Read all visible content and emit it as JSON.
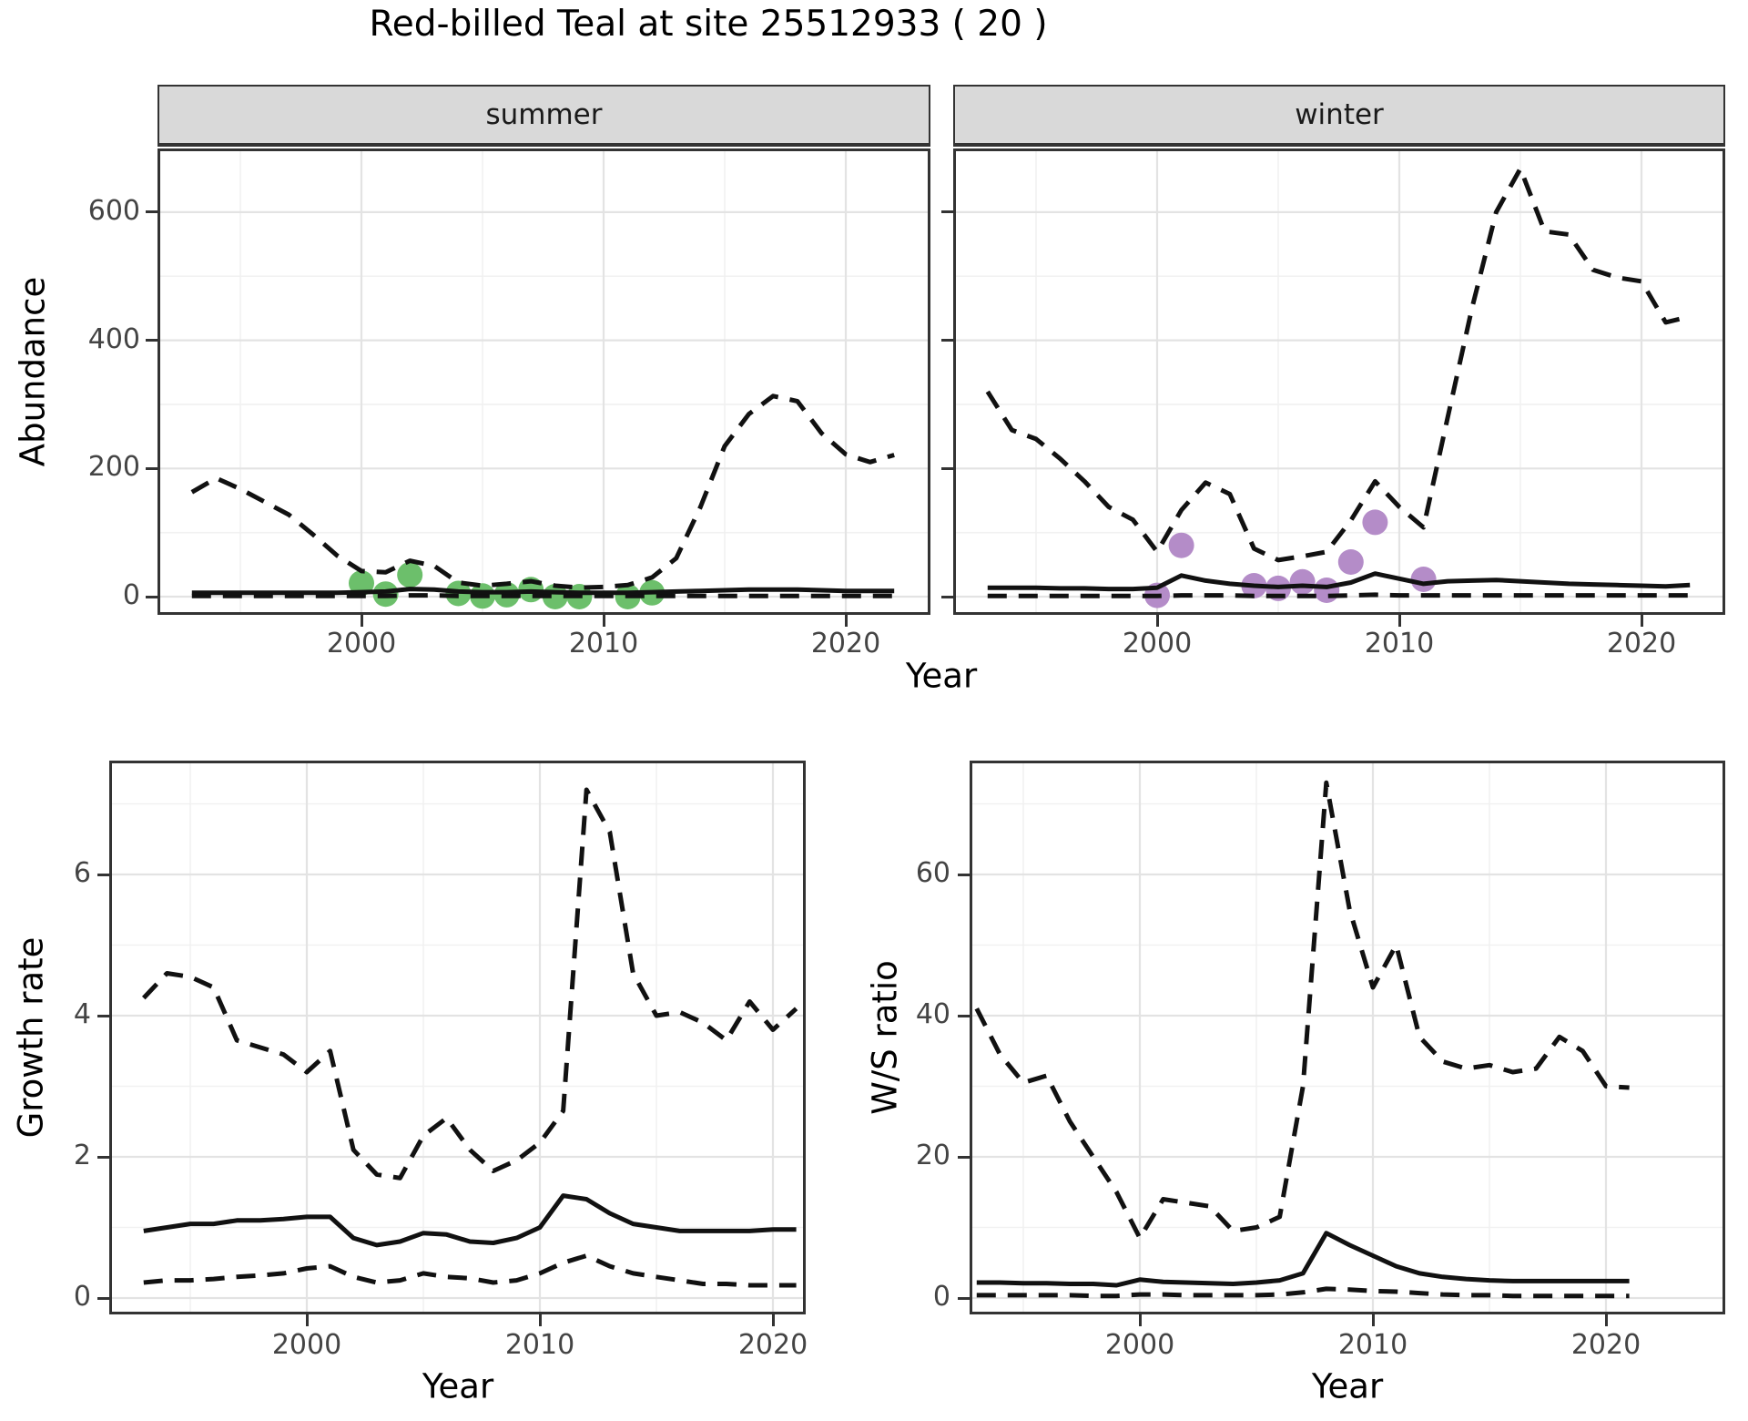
{
  "title": "Red-billed Teal at site 25512933 ( 20 )",
  "colors": {
    "observed_summer": "#6cbf6b",
    "observed_winter": "#b48cc8",
    "line": "#111111",
    "strip_bg": "#d9d9d9",
    "strip_text": "#1a1a1a",
    "grid_major": "#e3e3e3",
    "grid_minor": "#f1f1f1",
    "tick_text": "#444444",
    "panel_border": "#333333"
  },
  "top_figure": {
    "ylabel": "Abundance",
    "xlabel": "Year"
  },
  "chart_data": [
    {
      "id": "abundance-summer",
      "type": "line",
      "facet": "summer",
      "ylabel": "Abundance",
      "xlabel": "Year",
      "x": [
        1993,
        1994,
        1995,
        1996,
        1997,
        1998,
        1999,
        2000,
        2001,
        2002,
        2003,
        2004,
        2005,
        2006,
        2007,
        2008,
        2009,
        2010,
        2011,
        2012,
        2013,
        2014,
        2015,
        2016,
        2017,
        2018,
        2019,
        2020,
        2021,
        2022
      ],
      "series": [
        {
          "name": "upper_95ci",
          "style": "dashed",
          "values": [
            163,
            185,
            168,
            148,
            128,
            97,
            64,
            40,
            38,
            56,
            48,
            22,
            17,
            20,
            24,
            17,
            14,
            15,
            18,
            30,
            60,
            140,
            235,
            285,
            313,
            305,
            255,
            222,
            210,
            221
          ]
        },
        {
          "name": "median",
          "style": "solid",
          "values": [
            6,
            6,
            6,
            6,
            6,
            6,
            6,
            7,
            8,
            12,
            11,
            8,
            7,
            7,
            8,
            7,
            6,
            6,
            6,
            7,
            8,
            9,
            10,
            11,
            11,
            11,
            10,
            9,
            9,
            9
          ]
        },
        {
          "name": "lower_95ci",
          "style": "dashed",
          "values": [
            1,
            1,
            1,
            1,
            1,
            1,
            1,
            1,
            1,
            2,
            2,
            1,
            1,
            1,
            1,
            1,
            1,
            1,
            1,
            1,
            1,
            1,
            1,
            1,
            1,
            1,
            1,
            1,
            1,
            1
          ]
        }
      ],
      "points": {
        "name": "observed_counts_summer",
        "x": [
          2000,
          2001,
          2002,
          2004,
          2005,
          2006,
          2007,
          2008,
          2009,
          2011,
          2012
        ],
        "y": [
          21,
          4,
          34,
          5,
          1,
          3,
          11,
          0,
          0,
          0,
          6
        ]
      },
      "xticks": {
        "values": [
          2000,
          2010,
          2020
        ],
        "labels": [
          "2000",
          "2010",
          "2020"
        ]
      },
      "yticks": {
        "values": [
          0,
          200,
          400,
          600
        ],
        "labels": [
          "0",
          "200",
          "400",
          "600"
        ]
      },
      "x_minor": [
        1995,
        2005,
        2015
      ],
      "y_minor": [
        100,
        300,
        500,
        700
      ],
      "xlim": [
        1991.6,
        2023.5
      ],
      "ylim": [
        -28,
        699
      ],
      "grid": true,
      "legend": "none"
    },
    {
      "id": "abundance-winter",
      "type": "line",
      "facet": "winter",
      "ylabel": "Abundance",
      "xlabel": "Year",
      "x": [
        1993,
        1994,
        1995,
        1996,
        1997,
        1998,
        1999,
        2000,
        2001,
        2002,
        2003,
        2004,
        2005,
        2006,
        2007,
        2008,
        2009,
        2010,
        2011,
        2012,
        2013,
        2014,
        2015,
        2016,
        2017,
        2018,
        2019,
        2020,
        2021,
        2022
      ],
      "series": [
        {
          "name": "upper_95ci",
          "style": "dashed",
          "values": [
            320,
            260,
            246,
            215,
            180,
            140,
            120,
            70,
            135,
            178,
            160,
            75,
            57,
            63,
            70,
            119,
            180,
            140,
            108,
            280,
            450,
            600,
            668,
            570,
            565,
            510,
            498,
            492,
            428,
            437
          ]
        },
        {
          "name": "median",
          "style": "solid",
          "values": [
            14,
            14,
            14,
            13,
            13,
            12,
            12,
            14,
            33,
            25,
            20,
            17,
            15,
            17,
            15,
            22,
            36,
            28,
            20,
            24,
            25,
            26,
            24,
            22,
            20,
            19,
            18,
            17,
            16,
            18
          ]
        },
        {
          "name": "lower_95ci",
          "style": "dashed",
          "values": [
            1,
            1,
            1,
            1,
            1,
            1,
            1,
            1,
            2,
            2,
            2,
            1,
            1,
            1,
            1,
            2,
            3,
            2,
            2,
            2,
            2,
            2,
            2,
            2,
            2,
            2,
            2,
            2,
            2,
            2
          ]
        }
      ],
      "points": {
        "name": "observed_counts_winter",
        "x": [
          2000,
          2001,
          2004,
          2005,
          2006,
          2007,
          2008,
          2009,
          2011
        ],
        "y": [
          2,
          80,
          17,
          13,
          23,
          10,
          54,
          116,
          27
        ]
      },
      "xticks": {
        "values": [
          2000,
          2010,
          2020
        ],
        "labels": [
          "2000",
          "2010",
          "2020"
        ]
      },
      "yticks": {
        "values": [
          0,
          200,
          400,
          600
        ],
        "labels": [
          "0",
          "200",
          "400",
          "600"
        ]
      },
      "x_minor": [
        1995,
        2005,
        2015
      ],
      "y_minor": [
        100,
        300,
        500,
        700
      ],
      "xlim": [
        1991.6,
        2023.5
      ],
      "ylim": [
        -28,
        699
      ],
      "grid": true,
      "legend": "none"
    },
    {
      "id": "growth-rate",
      "type": "line",
      "facet": "",
      "ylabel": "Growth rate",
      "xlabel": "Year",
      "x": [
        1993,
        1994,
        1995,
        1996,
        1997,
        1998,
        1999,
        2000,
        2001,
        2002,
        2003,
        2004,
        2005,
        2006,
        2007,
        2008,
        2009,
        2010,
        2011,
        2012,
        2013,
        2014,
        2015,
        2016,
        2017,
        2018,
        2019,
        2020,
        2021
      ],
      "series": [
        {
          "name": "upper_95ci",
          "style": "dashed",
          "values": [
            4.25,
            4.6,
            4.55,
            4.4,
            3.65,
            3.55,
            3.45,
            3.2,
            3.5,
            2.1,
            1.75,
            1.7,
            2.3,
            2.55,
            2.1,
            1.8,
            1.95,
            2.2,
            2.65,
            7.2,
            6.6,
            4.6,
            4.0,
            4.05,
            3.9,
            3.65,
            4.2,
            3.8,
            4.1
          ]
        },
        {
          "name": "median",
          "style": "solid",
          "values": [
            0.95,
            1.0,
            1.05,
            1.05,
            1.1,
            1.1,
            1.12,
            1.15,
            1.15,
            0.85,
            0.75,
            0.8,
            0.92,
            0.9,
            0.8,
            0.78,
            0.85,
            1.0,
            1.45,
            1.4,
            1.2,
            1.05,
            1.0,
            0.95,
            0.95,
            0.95,
            0.95,
            0.97,
            0.97
          ]
        },
        {
          "name": "lower_95ci",
          "style": "dashed",
          "values": [
            0.22,
            0.25,
            0.25,
            0.27,
            0.3,
            0.32,
            0.35,
            0.42,
            0.45,
            0.3,
            0.22,
            0.25,
            0.35,
            0.3,
            0.28,
            0.22,
            0.25,
            0.35,
            0.5,
            0.6,
            0.45,
            0.35,
            0.3,
            0.25,
            0.2,
            0.2,
            0.18,
            0.18,
            0.18
          ]
        }
      ],
      "points": null,
      "xticks": {
        "values": [
          2000,
          2010,
          2020
        ],
        "labels": [
          "2000",
          "2010",
          "2020"
        ]
      },
      "yticks": {
        "values": [
          0,
          2,
          4,
          6
        ],
        "labels": [
          "0",
          "2",
          "4",
          "6"
        ]
      },
      "x_minor": [
        1995,
        2005,
        2015
      ],
      "y_minor": [
        1,
        3,
        5,
        7
      ],
      "xlim": [
        1991.5,
        2021.4
      ],
      "ylim": [
        -0.23,
        7.6
      ],
      "grid": true,
      "legend": "none"
    },
    {
      "id": "ws-ratio",
      "type": "line",
      "facet": "",
      "ylabel": "W/S ratio",
      "xlabel": "Year",
      "x": [
        1993,
        1994,
        1995,
        1996,
        1997,
        1998,
        1999,
        2000,
        2001,
        2002,
        2003,
        2004,
        2005,
        2006,
        2007,
        2008,
        2009,
        2010,
        2011,
        2012,
        2013,
        2014,
        2015,
        2016,
        2017,
        2018,
        2019,
        2020,
        2021
      ],
      "series": [
        {
          "name": "upper_95ci",
          "style": "dashed",
          "values": [
            41,
            34.5,
            30.5,
            31.5,
            25,
            20,
            15,
            8.5,
            14,
            13.5,
            13,
            9.5,
            10,
            11.5,
            30,
            73,
            55,
            44,
            50,
            37,
            33.5,
            32.5,
            33,
            32,
            32.5,
            37,
            35,
            30,
            29.8
          ]
        },
        {
          "name": "median",
          "style": "solid",
          "values": [
            2.2,
            2.2,
            2.1,
            2.1,
            2.0,
            2.0,
            1.8,
            2.6,
            2.3,
            2.2,
            2.1,
            2.0,
            2.2,
            2.5,
            3.5,
            9.2,
            7.5,
            6.0,
            4.5,
            3.5,
            3.0,
            2.7,
            2.5,
            2.4,
            2.4,
            2.4,
            2.4,
            2.4,
            2.4
          ]
        },
        {
          "name": "lower_95ci",
          "style": "dashed",
          "values": [
            0.4,
            0.4,
            0.4,
            0.4,
            0.4,
            0.3,
            0.3,
            0.5,
            0.5,
            0.4,
            0.4,
            0.4,
            0.4,
            0.5,
            0.8,
            1.3,
            1.2,
            1.0,
            0.9,
            0.7,
            0.5,
            0.4,
            0.4,
            0.3,
            0.3,
            0.3,
            0.3,
            0.3,
            0.3
          ]
        }
      ],
      "points": null,
      "xticks": {
        "values": [
          2000,
          2010,
          2020
        ],
        "labels": [
          "2000",
          "2010",
          "2020"
        ]
      },
      "yticks": {
        "values": [
          0,
          20,
          40,
          60
        ],
        "labels": [
          "0",
          "20",
          "40",
          "60"
        ]
      },
      "x_minor": [
        1995,
        2005,
        2015
      ],
      "y_minor": [
        10,
        30,
        50,
        70
      ],
      "xlim": [
        1992.7,
        2025.1
      ],
      "ylim": [
        -2.3,
        76
      ],
      "grid": true,
      "legend": "none"
    }
  ]
}
